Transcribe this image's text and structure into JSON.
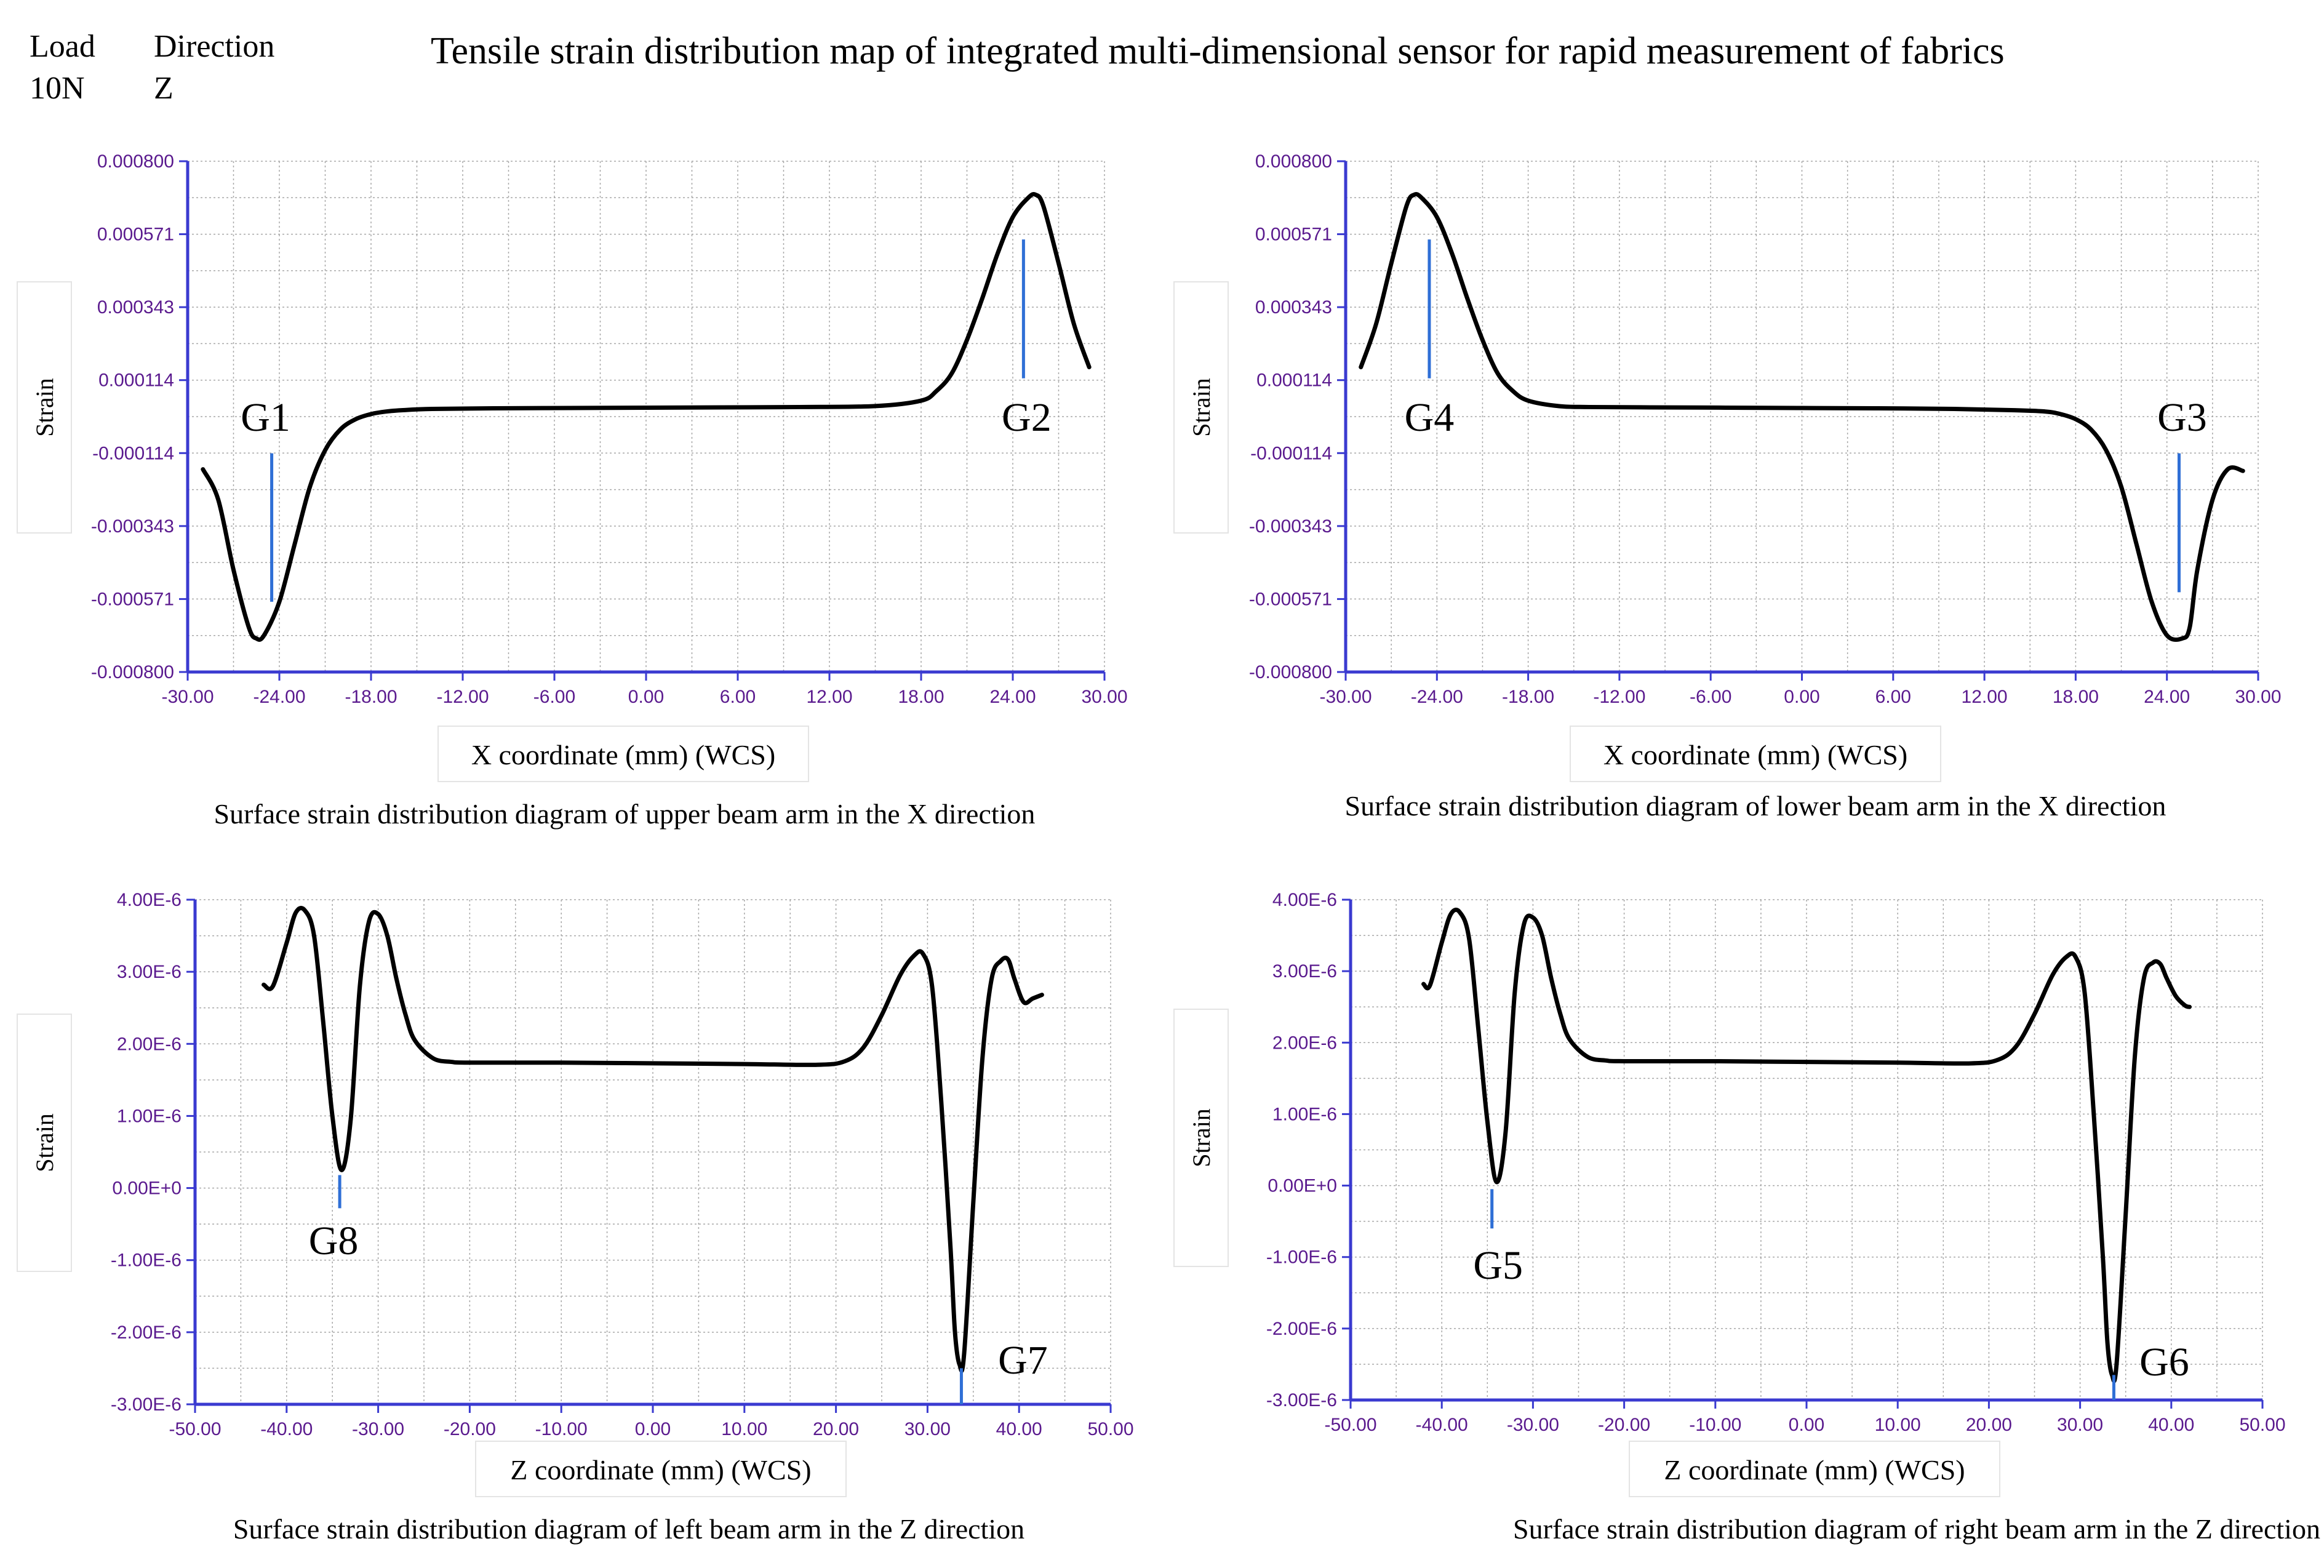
{
  "header": {
    "load_label": "Load",
    "load_value": "10N",
    "direction_label": "Direction",
    "direction_value": "Z",
    "title": "Tensile strain distribution map of integrated multi-dimensional sensor for rapid measurement of fabrics"
  },
  "colors": {
    "axis": "#3a3ad0",
    "tick_label": "#5a1a8e",
    "curve": "#000000",
    "marker": "#2f6fd6",
    "grid": "#a8a8a8"
  },
  "chart_data": [
    {
      "type": "line",
      "caption": "Surface strain distribution diagram of upper beam arm in the X direction",
      "xlabel": "X coordinate (mm) (WCS)",
      "ylabel": "Strain",
      "xlim": [
        -30,
        30
      ],
      "ylim": [
        -0.0008,
        0.0008
      ],
      "xticks": [
        "-30.00",
        "-24.00",
        "-18.00",
        "-12.00",
        "-6.00",
        "0.00",
        "6.00",
        "12.00",
        "18.00",
        "24.00",
        "30.00"
      ],
      "yticks": [
        "-0.000800",
        "-0.000571",
        "-0.000343",
        "-0.000114",
        "0.000114",
        "0.000343",
        "0.000571",
        "0.000800"
      ],
      "grid": true,
      "series": [
        {
          "name": "strain",
          "x": [
            -29,
            -28,
            -27,
            -26,
            -25.5,
            -25,
            -24,
            -23,
            -22,
            -21,
            -20,
            -19,
            -18,
            -17,
            -16,
            -14,
            -10,
            -5,
            0,
            5,
            10,
            15,
            18,
            19,
            20,
            21,
            22,
            23,
            24,
            25,
            25.5,
            26,
            27,
            28,
            29
          ],
          "y": [
            -0.000165,
            -0.00026,
            -0.00048,
            -0.00066,
            -0.000695,
            -0.000685,
            -0.00058,
            -0.0004,
            -0.00022,
            -0.000105,
            -4e-05,
            -8e-06,
            8e-06,
            1.6e-05,
            2e-05,
            2.4e-05,
            2.6e-05,
            2.7e-05,
            2.8e-05,
            2.9e-05,
            3e-05,
            3.3e-05,
            5e-05,
            8e-05,
            0.000135,
            0.00024,
            0.00037,
            0.00051,
            0.000625,
            0.000685,
            0.000695,
            0.00066,
            0.00048,
            0.00029,
            0.000155
          ]
        }
      ],
      "annotations": [
        {
          "label": "G1",
          "x": -24.5,
          "marker_y": [
            -0.000115,
            -0.00058
          ]
        },
        {
          "label": "G2",
          "x": 24.7,
          "marker_y": [
            0.000555,
            0.00012
          ]
        }
      ]
    },
    {
      "type": "line",
      "caption": "Surface strain distribution diagram of lower beam arm in the X direction",
      "xlabel": "X coordinate (mm) (WCS)",
      "ylabel": "Strain",
      "xlim": [
        -30,
        30
      ],
      "ylim": [
        -0.0008,
        0.0008
      ],
      "xticks": [
        "-30.00",
        "-24.00",
        "-18.00",
        "-12.00",
        "-6.00",
        "0.00",
        "6.00",
        "12.00",
        "18.00",
        "24.00",
        "30.00"
      ],
      "yticks": [
        "-0.000800",
        "-0.000571",
        "-0.000343",
        "-0.000114",
        "0.000114",
        "0.000343",
        "0.000571",
        "0.000800"
      ],
      "grid": true,
      "series": [
        {
          "name": "strain",
          "x": [
            -29,
            -28,
            -27,
            -26,
            -25.5,
            -25,
            -24,
            -23,
            -22,
            -21,
            -20,
            -19,
            -18,
            -16,
            -14,
            -10,
            -5,
            0,
            5,
            10,
            14,
            16,
            17,
            18,
            19,
            20,
            21,
            22,
            23,
            24,
            25,
            25.5,
            26,
            27,
            28,
            29
          ],
          "y": [
            0.000155,
            0.00029,
            0.00048,
            0.00066,
            0.000695,
            0.000685,
            0.000625,
            0.00051,
            0.00037,
            0.00024,
            0.000135,
            8e-05,
            5e-05,
            3.3e-05,
            3e-05,
            2.9e-05,
            2.8e-05,
            2.7e-05,
            2.6e-05,
            2.4e-05,
            2e-05,
            1.6e-05,
            8e-06,
            -8e-06,
            -4e-05,
            -0.000105,
            -0.00022,
            -0.0004,
            -0.00058,
            -0.000685,
            -0.000695,
            -0.00066,
            -0.00048,
            -0.00026,
            -0.000165,
            -0.00017
          ]
        }
      ],
      "annotations": [
        {
          "label": "G4",
          "x": -24.5,
          "marker_y": [
            0.000555,
            0.00012
          ]
        },
        {
          "label": "G3",
          "x": 24.8,
          "marker_y": [
            -0.000115,
            -0.00055
          ]
        }
      ]
    },
    {
      "type": "line",
      "caption": "Surface strain distribution diagram of left beam arm in the Z direction",
      "xlabel": "Z coordinate (mm) (WCS)",
      "ylabel": "Strain",
      "xlim": [
        -50,
        50
      ],
      "ylim": [
        -3e-06,
        4e-06
      ],
      "xticks": [
        "-50.00",
        "-40.00",
        "-30.00",
        "-20.00",
        "-10.00",
        "0.00",
        "10.00",
        "20.00",
        "30.00",
        "40.00",
        "50.00"
      ],
      "yticks": [
        "-3.00E-6",
        "-2.00E-6",
        "-1.00E-6",
        "0.00E+0",
        "1.00E-6",
        "2.00E-6",
        "3.00E-6",
        "4.00E-6"
      ],
      "grid": true,
      "series": [
        {
          "name": "strain",
          "x": [
            -42.5,
            -41.5,
            -40,
            -39,
            -38,
            -37,
            -36,
            -35,
            -34,
            -33,
            -32,
            -31,
            -30,
            -29,
            -28,
            -27,
            -26,
            -24,
            -22,
            -20,
            -10,
            0,
            10,
            18,
            21,
            23,
            25,
            27,
            28.5,
            29.5,
            30.5,
            31.5,
            32.5,
            33,
            33.5,
            34,
            35,
            36,
            37,
            38,
            38.8,
            39.5,
            40.5,
            41.5,
            42.5
          ],
          "y": [
            2.82e-06,
            2.8e-06,
            3.4e-06,
            3.82e-06,
            3.85e-06,
            3.5e-06,
            2.3e-06,
            1e-06,
            2.5e-07,
            9.5e-07,
            2.8e-06,
            3.7e-06,
            3.8e-06,
            3.5e-06,
            2.9e-06,
            2.4e-06,
            2.05e-06,
            1.8e-06,
            1.75e-06,
            1.74e-06,
            1.74e-06,
            1.73e-06,
            1.72e-06,
            1.71e-06,
            1.76e-06,
            1.95e-06,
            2.4e-06,
            2.95e-06,
            3.22e-06,
            3.25e-06,
            2.8e-06,
            1.2e-06,
            -8e-07,
            -2e-06,
            -2.45e-06,
            -2.3e-06,
            -2e-07,
            1.8e-06,
            2.9e-06,
            3.15e-06,
            3.17e-06,
            2.9e-06,
            2.58e-06,
            2.63e-06,
            2.68e-06
          ]
        }
      ],
      "annotations": [
        {
          "label": "G8",
          "x": -34.2,
          "marker_y": [
            1.8e-07,
            -2.8e-07
          ]
        },
        {
          "label": "G7",
          "x": 33.7,
          "marker_y": [
            -2.5e-06,
            -3e-06
          ]
        }
      ]
    },
    {
      "type": "line",
      "caption": "Surface strain distribution diagram of right beam arm in the Z direction",
      "xlabel": "Z coordinate (mm) (WCS)",
      "ylabel": "Strain",
      "xlim": [
        -50,
        50
      ],
      "ylim": [
        -3e-06,
        4e-06
      ],
      "xticks": [
        "-50.00",
        "-40.00",
        "-30.00",
        "-20.00",
        "-10.00",
        "0.00",
        "10.00",
        "20.00",
        "30.00",
        "40.00",
        "50.00"
      ],
      "yticks": [
        "-3.00E-6",
        "-2.00E-6",
        "-1.00E-6",
        "0.00E+0",
        "1.00E-6",
        "2.00E-6",
        "3.00E-6",
        "4.00E-6"
      ],
      "grid": true,
      "series": [
        {
          "name": "strain",
          "x": [
            -42,
            -41.3,
            -40,
            -39,
            -38,
            -37,
            -36,
            -35,
            -34,
            -33,
            -32,
            -31,
            -30,
            -29,
            -28,
            -27,
            -26,
            -24,
            -22,
            -20,
            -10,
            0,
            10,
            18,
            21,
            23,
            25,
            27,
            28.5,
            29.5,
            30.5,
            31.5,
            32.5,
            33,
            33.5,
            34,
            35,
            36,
            37,
            38,
            38.8,
            39.5,
            40.5,
            41.5,
            42
          ],
          "y": [
            2.82e-06,
            2.8e-06,
            3.4e-06,
            3.8e-06,
            3.82e-06,
            3.45e-06,
            2.2e-06,
            9e-07,
            5e-08,
            7.5e-07,
            2.7e-06,
            3.65e-06,
            3.75e-06,
            3.5e-06,
            2.9e-06,
            2.4e-06,
            2.05e-06,
            1.8e-06,
            1.75e-06,
            1.74e-06,
            1.74e-06,
            1.73e-06,
            1.72e-06,
            1.71e-06,
            1.76e-06,
            1.95e-06,
            2.4e-06,
            2.95e-06,
            3.2e-06,
            3.2e-06,
            2.7e-06,
            1e-06,
            -1e-06,
            -2.2e-06,
            -2.65e-06,
            -2.5e-06,
            -4e-07,
            1.8e-06,
            2.9e-06,
            3.12e-06,
            3.1e-06,
            2.9e-06,
            2.65e-06,
            2.52e-06,
            2.5e-06
          ]
        }
      ],
      "annotations": [
        {
          "label": "G5",
          "x": -34.5,
          "marker_y": [
            -5e-08,
            -6e-07
          ]
        },
        {
          "label": "G6",
          "x": 33.7,
          "marker_y": [
            -2.65e-06,
            -3e-06
          ]
        }
      ]
    }
  ]
}
